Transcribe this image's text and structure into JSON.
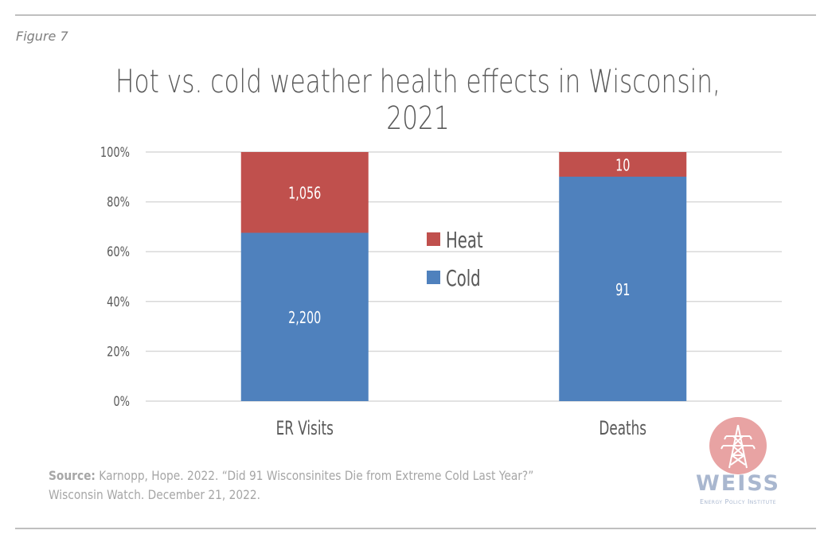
{
  "figure_label": "Figure 7",
  "source": {
    "label": "Source:",
    "line1": " Karnopp, Hope. 2022. “Did 91 Wisconsinites Die from Extreme Cold Last Year?”",
    "line2": "Wisconsin Watch. December 21, 2022."
  },
  "logo": {
    "icon": "transmission-tower-icon",
    "name": "WEISS",
    "subtitle": "Energy Policy Institute"
  },
  "chart_data": {
    "type": "bar",
    "stacked": true,
    "normalized": true,
    "title": "Hot vs. cold weather health effects in Wisconsin, 2021",
    "xlabel": "",
    "ylabel": "",
    "categories": [
      "ER Visits",
      "Deaths"
    ],
    "series": [
      {
        "name": "Cold",
        "color": "#4F81BD",
        "values": [
          2200,
          91
        ],
        "labels": [
          "2,200",
          "91"
        ]
      },
      {
        "name": "Heat",
        "color": "#C0504D",
        "values": [
          1056,
          10
        ],
        "labels": [
          "1,056",
          "10"
        ]
      }
    ],
    "ylim": [
      0,
      100
    ],
    "yticks": [
      0,
      20,
      40,
      60,
      80,
      100
    ],
    "ytick_labels": [
      "0%",
      "20%",
      "40%",
      "60%",
      "80%",
      "100%"
    ],
    "grid": true,
    "legend": {
      "position": "center",
      "entries": [
        "Heat",
        "Cold"
      ]
    }
  }
}
